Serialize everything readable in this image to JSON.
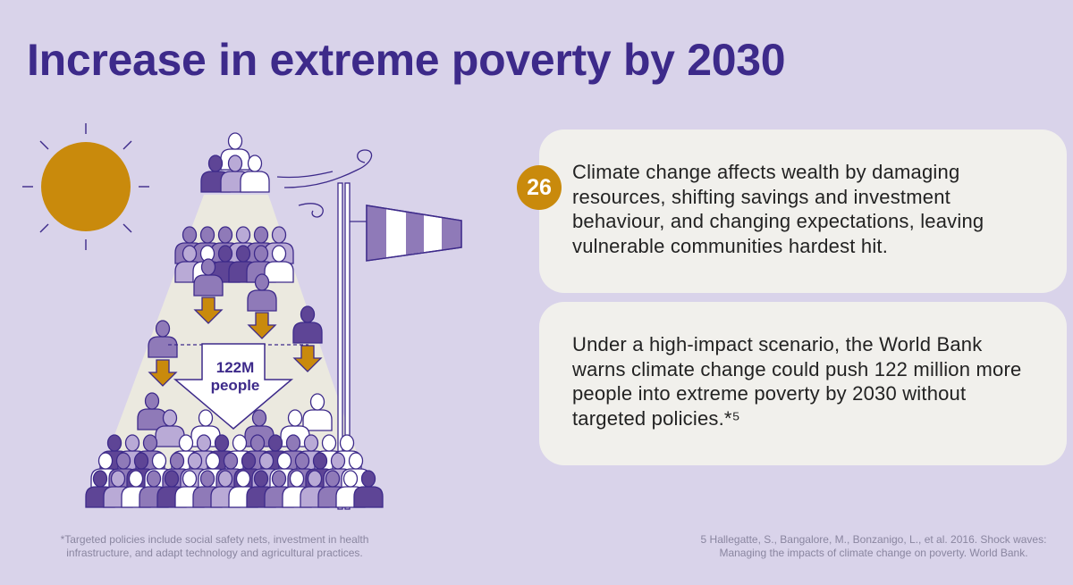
{
  "title": "Increase in extreme poverty by 2030",
  "illustration": {
    "arrow_label_line1": "122M",
    "arrow_label_line2": "people",
    "icons": [
      "sun-icon",
      "windsock-icon",
      "wind-icon",
      "people-group-icon",
      "down-arrow-icon"
    ],
    "colors": {
      "sun": "#c98a0c",
      "arrow": "#c98a0c",
      "dark_person": "#5e4596",
      "mid_person": "#8f7ab8",
      "light_person": "#b9aad6",
      "white_person": "#ffffff",
      "beam": "#ebe9df"
    }
  },
  "card1": {
    "badge": "26",
    "text": "Climate change affects wealth by damaging resources, shifting savings and investment behaviour, and changing expectations, leaving vulnerable communities hardest hit."
  },
  "card2": {
    "text": "Under a high-impact scenario, the World Bank warns climate change could push 122 million more people into extreme poverty by 2030 without targeted policies.*⁵"
  },
  "footnote_left": {
    "line1": "*Targeted policies include social safety nets, investment in health",
    "line2": "infrastructure, and adapt technology and agricultural practices."
  },
  "footnote_right": {
    "line1": "5 Hallegatte, S., Bangalore, M., Bonzanigo, L., et al. 2016. Shock waves:",
    "line2": "Managing the impacts of climate change on poverty. World Bank."
  }
}
